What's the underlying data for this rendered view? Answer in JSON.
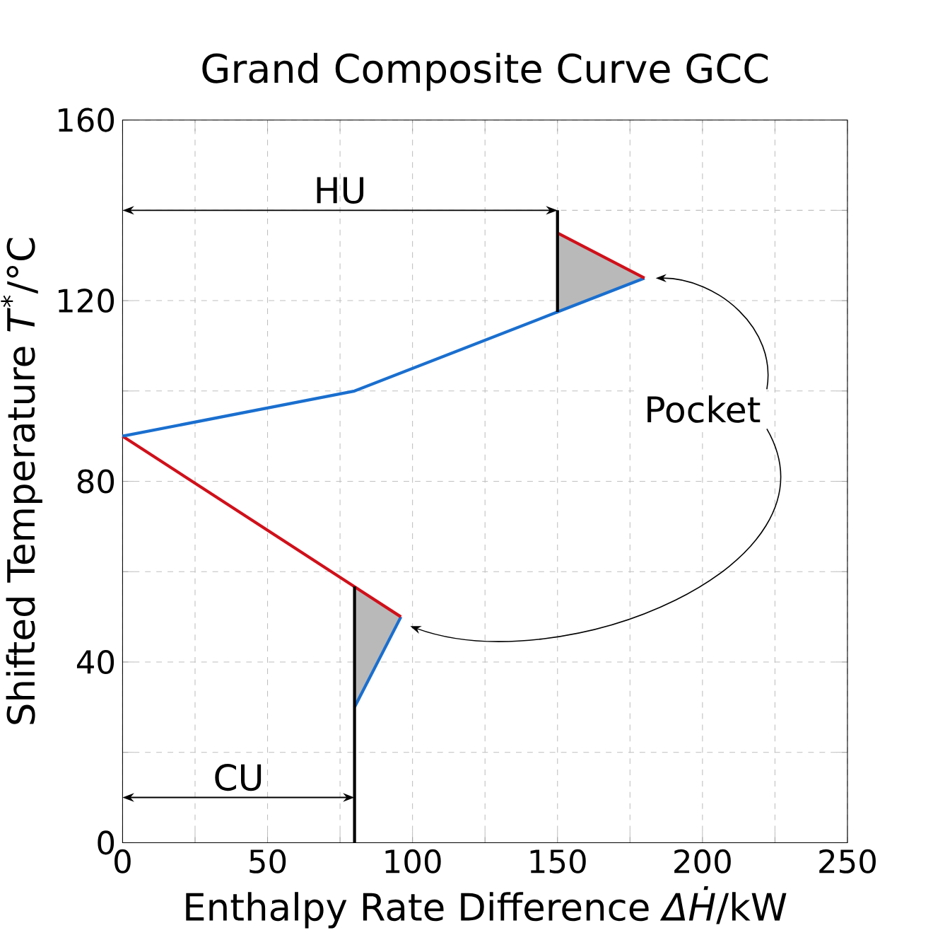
{
  "chart_data": {
    "type": "line",
    "title": "Grand Composite Curve GCC",
    "xlabel": "Enthalpy Rate Difference *ΔḢ*/kW",
    "ylabel": "Shifted Temperature *T*$^{*}$/°C",
    "series": [
      {
        "color": "#1a6fcf",
        "x": [
          80,
          96
        ],
        "values": [
          30,
          50
        ],
        "lower": [
          30,
          50
        ],
        "upper": [
          56.7,
          50
        ]
      },
      {
        "color": "#d0101a",
        "x": [
          96,
          0
        ],
        "values": [
          50,
          90
        ]
      },
      {
        "color": "#1a6fcf",
        "x": [
          0,
          80,
          150,
          180
        ],
        "values": [
          90,
          100,
          117.5,
          125
        ],
        "lower": [
          null,
          null,
          117.5,
          125
        ],
        "upper": [
          null,
          null,
          135,
          125
        ]
      },
      {
        "color": "#d0101a",
        "x": [
          180,
          150
        ],
        "values": [
          125,
          135
        ]
      },
      {
        "color": "#000000",
        "x": [
          80,
          80
        ],
        "values": [
          0,
          56.7
        ]
      },
      {
        "color": "#000000",
        "x": [
          150,
          150
        ],
        "values": [
          117.5,
          140
        ]
      }
    ],
    "xlim": [
      0,
      250
    ],
    "ylim": [
      0,
      160
    ],
    "xticks": [
      0,
      {
        "value": 25,
        "label": null
      },
      50,
      {
        "value": 75,
        "label": null
      },
      100,
      {
        "value": 125,
        "label": null
      },
      150,
      {
        "value": 175,
        "label": null
      },
      200,
      {
        "value": 225,
        "label": null
      },
      250
    ],
    "yticks": [
      0,
      {
        "value": 20,
        "label": null
      },
      40,
      {
        "value": 60,
        "label": null
      },
      80,
      {
        "value": 100,
        "label": null
      },
      120,
      {
        "value": 140,
        "label": null
      },
      160
    ],
    "grid": true,
    "marker": "none",
    "line_style": "solid",
    "annotations": [
      "HU",
      "CU",
      "Pocket"
    ]
  }
}
